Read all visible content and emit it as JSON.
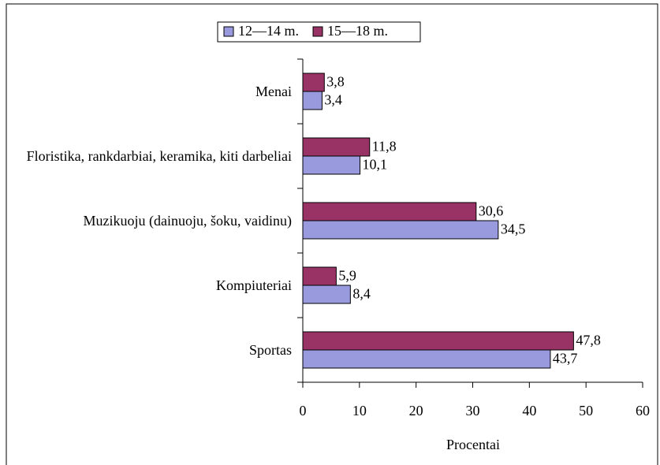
{
  "chart_data": {
    "type": "bar",
    "orientation": "horizontal",
    "categories": [
      "Menai",
      "Floristika, rankdarbiai, keramika, kiti darbeliai",
      "Muzikuoju (dainuoju, šoku, vaidinu)",
      "Kompiuteriai",
      "Sportas"
    ],
    "series": [
      {
        "name": "12—14 m.",
        "color": "#9999dd",
        "values": [
          3.4,
          10.1,
          34.5,
          8.4,
          43.7
        ],
        "value_labels": [
          "3,4",
          "10,1",
          "34,5",
          "8,4",
          "43,7"
        ]
      },
      {
        "name": "15—18 m.",
        "color": "#993366",
        "values": [
          3.8,
          11.8,
          30.6,
          5.9,
          47.8
        ],
        "value_labels": [
          "3,8",
          "11,8",
          "30,6",
          "5,9",
          "47,8"
        ]
      }
    ],
    "xlabel": "Procentai",
    "xlim": [
      0,
      60
    ],
    "xticks": [
      0,
      10,
      20,
      30,
      40,
      50,
      60
    ],
    "legend": "top"
  }
}
